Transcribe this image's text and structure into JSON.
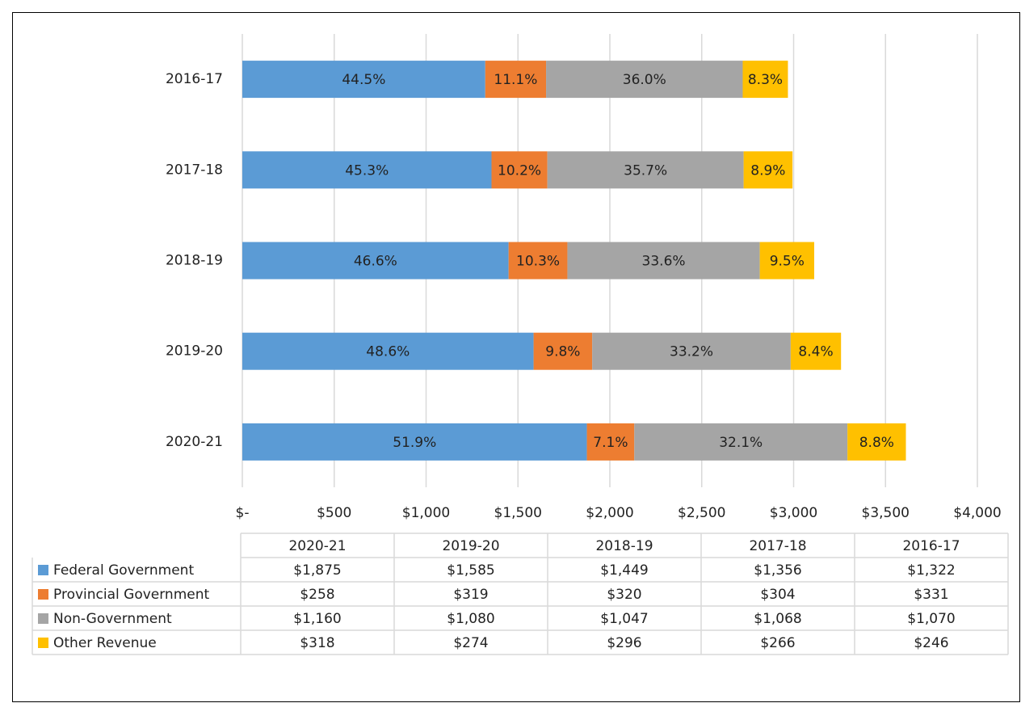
{
  "chart_data": {
    "type": "stacked_bar_horizontal",
    "categories": [
      "2020-21",
      "2019-20",
      "2018-19",
      "2017-18",
      "2016-17"
    ],
    "series": [
      {
        "name": "Federal Government",
        "color": "#5b9bd5",
        "values": [
          1875,
          1585,
          1449,
          1356,
          1322
        ],
        "value_labels": [
          "$1,875",
          "$1,585",
          "$1,449",
          "$1,356",
          "$1,322"
        ],
        "share_labels": [
          "51.9%",
          "48.6%",
          "46.6%",
          "45.3%",
          "44.5%"
        ]
      },
      {
        "name": "Provincial Government",
        "color": "#ed7d31",
        "values": [
          258,
          319,
          320,
          304,
          331
        ],
        "value_labels": [
          "$258",
          "$319",
          "$320",
          "$304",
          "$331"
        ],
        "share_labels": [
          "7.1%",
          "9.8%",
          "10.3%",
          "10.2%",
          "11.1%"
        ]
      },
      {
        "name": "Non-Government",
        "color": "#a5a5a5",
        "values": [
          1160,
          1080,
          1047,
          1068,
          1070
        ],
        "value_labels": [
          "$1,160",
          "$1,080",
          "$1,047",
          "$1,068",
          "$1,070"
        ],
        "share_labels": [
          "32.1%",
          "33.2%",
          "33.6%",
          "35.7%",
          "36.0%"
        ]
      },
      {
        "name": "Other Revenue",
        "color": "#ffc000",
        "values": [
          318,
          274,
          296,
          266,
          246
        ],
        "value_labels": [
          "$318",
          "$274",
          "$296",
          "$266",
          "$246"
        ],
        "share_labels": [
          "8.8%",
          "8.4%",
          "9.5%",
          "8.9%",
          "8.3%"
        ]
      }
    ],
    "xlim": [
      0,
      4000
    ],
    "xticks": [
      {
        "value": 0,
        "label": "$-"
      },
      {
        "value": 500,
        "label": "$500"
      },
      {
        "value": 1000,
        "label": "$1,000"
      },
      {
        "value": 1500,
        "label": "$1,500"
      },
      {
        "value": 2000,
        "label": "$2,000"
      },
      {
        "value": 2500,
        "label": "$2,500"
      },
      {
        "value": 3000,
        "label": "$3,000"
      },
      {
        "value": 3500,
        "label": "$3,500"
      },
      {
        "value": 4000,
        "label": "$4,000"
      }
    ],
    "grid": true
  }
}
